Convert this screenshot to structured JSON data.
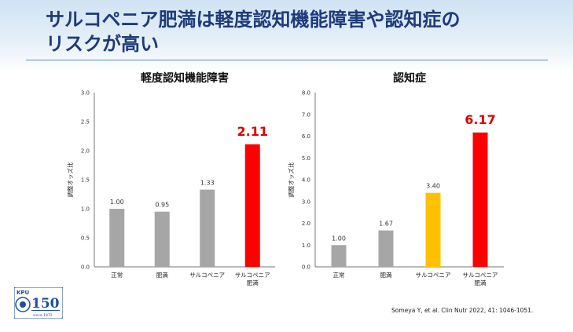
{
  "slide": {
    "title_line1": "サルコペニア肥満は軽度認知機能障害や認知症の",
    "title_line2": "リスクが高い",
    "citation": "Someya Y, et al. Clin Nutr  2022, 41: 1046-1051.",
    "logo": {
      "mark": "KPU",
      "number": "150",
      "caption": "since 1872"
    }
  },
  "chart_data": [
    {
      "type": "bar",
      "title": "軽度認知機能障害",
      "ylabel": "調整オッズ比",
      "categories": [
        "正常",
        "肥満",
        "サルコペニア",
        "サルコペニア\n肥満"
      ],
      "values": [
        1.0,
        0.95,
        1.33,
        2.11
      ],
      "value_labels": [
        "1.00",
        "0.95",
        "1.33",
        "2.11"
      ],
      "ylim": [
        0,
        3.0
      ],
      "yticks": [
        "0.0",
        "0.5",
        "1.0",
        "1.5",
        "2.0",
        "2.5",
        "3.0"
      ],
      "bar_colors": [
        "#a6a6a6",
        "#a6a6a6",
        "#a6a6a6",
        "#ff0000"
      ],
      "highlight_index": 3
    },
    {
      "type": "bar",
      "title": "認知症",
      "ylabel": "調整オッズ比",
      "categories": [
        "正常",
        "肥満",
        "サルコペニア",
        "サルコペニア\n肥満"
      ],
      "values": [
        1.0,
        1.67,
        3.4,
        6.17
      ],
      "value_labels": [
        "1.00",
        "1.67",
        "3.40",
        "6.17"
      ],
      "ylim": [
        0,
        8.0
      ],
      "yticks": [
        "0.0",
        "1.0",
        "2.0",
        "3.0",
        "4.0",
        "5.0",
        "6.0",
        "7.0",
        "8.0"
      ],
      "bar_colors": [
        "#a6a6a6",
        "#a6a6a6",
        "#ffc000",
        "#ff0000"
      ],
      "highlight_index": 3
    }
  ]
}
